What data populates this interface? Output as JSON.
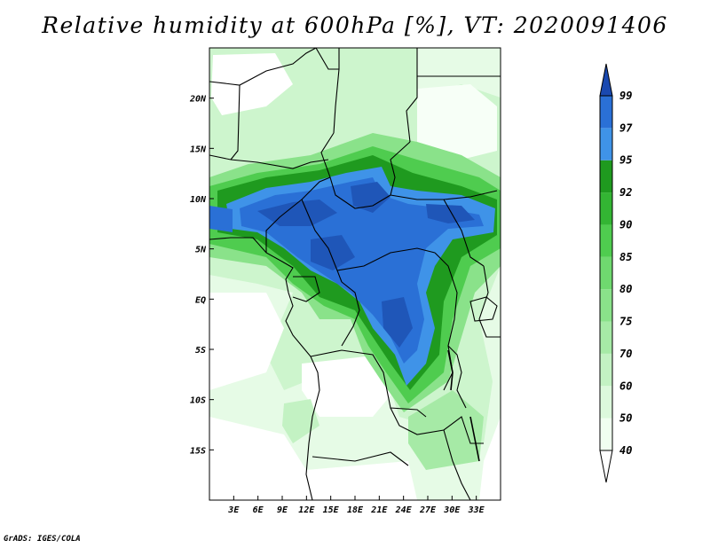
{
  "title": "Relative humidity at 600hPa [%], VT: 2020091406",
  "credit": "GrADS: IGES/COLA",
  "map": {
    "lon_range": [
      0,
      36
    ],
    "lat_range": [
      -20,
      25
    ],
    "x_ticks": [
      "3E",
      "6E",
      "9E",
      "12E",
      "15E",
      "18E",
      "21E",
      "24E",
      "27E",
      "30E",
      "33E"
    ],
    "y_ticks": [
      "20N",
      "15N",
      "10N",
      "5N",
      "EQ",
      "5S",
      "10S",
      "15S"
    ]
  },
  "colorbar": {
    "levels": [
      "40",
      "50",
      "60",
      "70",
      "75",
      "80",
      "85",
      "90",
      "92",
      "95",
      "97",
      "99"
    ],
    "colors": [
      "#f0fff0",
      "#dcf9dc",
      "#c3f2c3",
      "#a6eaa6",
      "#8ae28a",
      "#6fd96f",
      "#4fcc4f",
      "#33b533",
      "#1f9a1f",
      "#3f93e8",
      "#2a70d6",
      "#1f56b8",
      "#ffffff"
    ],
    "top_arrow_color": "#1a49b0",
    "bottom_arrow_color": "#ffffff"
  }
}
